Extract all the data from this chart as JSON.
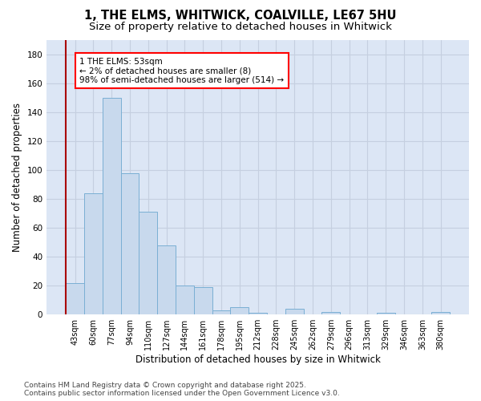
{
  "title1": "1, THE ELMS, WHITWICK, COALVILLE, LE67 5HU",
  "title2": "Size of property relative to detached houses in Whitwick",
  "xlabel": "Distribution of detached houses by size in Whitwick",
  "ylabel": "Number of detached properties",
  "categories": [
    "43sqm",
    "60sqm",
    "77sqm",
    "94sqm",
    "110sqm",
    "127sqm",
    "144sqm",
    "161sqm",
    "178sqm",
    "195sqm",
    "212sqm",
    "228sqm",
    "245sqm",
    "262sqm",
    "279sqm",
    "296sqm",
    "313sqm",
    "329sqm",
    "346sqm",
    "363sqm",
    "380sqm"
  ],
  "values": [
    22,
    84,
    150,
    98,
    71,
    48,
    20,
    19,
    3,
    5,
    1,
    0,
    4,
    0,
    2,
    0,
    0,
    1,
    0,
    0,
    2
  ],
  "bar_color": "#c8d9ed",
  "bar_edge_color": "#7aafd4",
  "grid_color": "#c5cfe0",
  "bg_color": "#dce6f5",
  "annotation_text": "1 THE ELMS: 53sqm\n← 2% of detached houses are smaller (8)\n98% of semi-detached houses are larger (514) →",
  "vline_color": "#aa0000",
  "ylim": [
    0,
    190
  ],
  "yticks": [
    0,
    20,
    40,
    60,
    80,
    100,
    120,
    140,
    160,
    180
  ],
  "footnote": "Contains HM Land Registry data © Crown copyright and database right 2025.\nContains public sector information licensed under the Open Government Licence v3.0.",
  "title_fontsize": 10.5,
  "subtitle_fontsize": 9.5,
  "axis_label_fontsize": 8.5,
  "tick_fontsize": 7,
  "annotation_fontsize": 7.5,
  "footnote_fontsize": 6.5
}
